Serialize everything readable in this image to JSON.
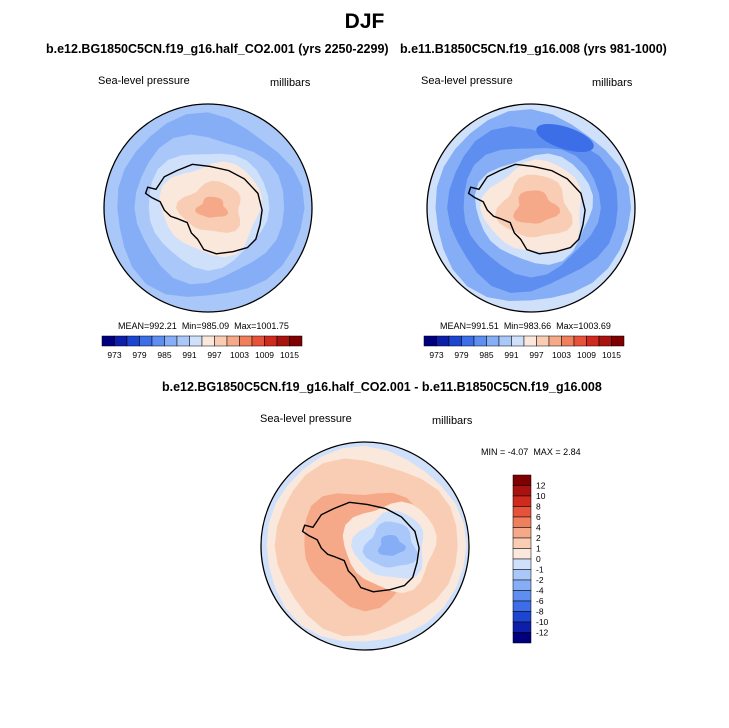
{
  "page": {
    "title": "DJF"
  },
  "chart_data": [
    {
      "type": "heatmap",
      "projection": "south-polar-stereographic",
      "title": "b.e12.BG1850C5CN.f19_g16.half_CO2.001 (yrs 2250-2299)",
      "variable": "Sea-level pressure",
      "units": "millibars",
      "stats": {
        "mean_label": "MEAN=",
        "mean": "992.21",
        "min_label": "Min=",
        "min": "985.09",
        "max_label": "Max=",
        "max": "1001.75"
      },
      "colorbar": {
        "orientation": "horizontal",
        "levels": [
          "973",
          "979",
          "985",
          "991",
          "997",
          "1003",
          "1009",
          "1015"
        ],
        "colors": [
          "#00007f",
          "#0d1fa8",
          "#1d46d0",
          "#3c6ee8",
          "#5e8ef0",
          "#85aef6",
          "#a9c8f9",
          "#cfe0fb",
          "#fbe8dc",
          "#f9cdb4",
          "#f5a989",
          "#ef7f5d",
          "#e7533a",
          "#d02a1f",
          "#a9130f",
          "#7f0000"
        ]
      }
    },
    {
      "type": "heatmap",
      "projection": "south-polar-stereographic",
      "title": "b.e11.B1850C5CN.f19_g16.008 (yrs 981-1000)",
      "variable": "Sea-level pressure",
      "units": "millibars",
      "stats": {
        "mean_label": "MEAN=",
        "mean": "991.51",
        "min_label": "Min=",
        "min": "983.66",
        "max_label": "Max=",
        "max": "1003.69"
      },
      "colorbar": {
        "orientation": "horizontal",
        "levels": [
          "973",
          "979",
          "985",
          "991",
          "997",
          "1003",
          "1009",
          "1015"
        ],
        "colors": [
          "#00007f",
          "#0d1fa8",
          "#1d46d0",
          "#3c6ee8",
          "#5e8ef0",
          "#85aef6",
          "#a9c8f9",
          "#cfe0fb",
          "#fbe8dc",
          "#f9cdb4",
          "#f5a989",
          "#ef7f5d",
          "#e7533a",
          "#d02a1f",
          "#a9130f",
          "#7f0000"
        ]
      }
    },
    {
      "type": "heatmap",
      "projection": "south-polar-stereographic",
      "title": "b.e12.BG1850C5CN.f19_g16.half_CO2.001 - b.e11.B1850C5CN.f19_g16.008",
      "variable": "Sea-level pressure",
      "units": "millibars",
      "stats": {
        "min_label": "MIN =",
        "min": "-4.07",
        "max_label": "MAX =",
        "max": "2.84"
      },
      "colorbar": {
        "orientation": "vertical",
        "levels": [
          "12",
          "10",
          "8",
          "6",
          "4",
          "2",
          "1",
          "0",
          "-1",
          "-2",
          "-4",
          "-6",
          "-8",
          "-10",
          "-12"
        ],
        "colors": [
          "#7f0000",
          "#a9130f",
          "#d02a1f",
          "#e7533a",
          "#ef7f5d",
          "#f5a989",
          "#f9cdb4",
          "#fbe8dc",
          "#cfe0fb",
          "#a9c8f9",
          "#85aef6",
          "#5e8ef0",
          "#3c6ee8",
          "#1d46d0",
          "#0d1fa8",
          "#00007f"
        ]
      }
    }
  ]
}
